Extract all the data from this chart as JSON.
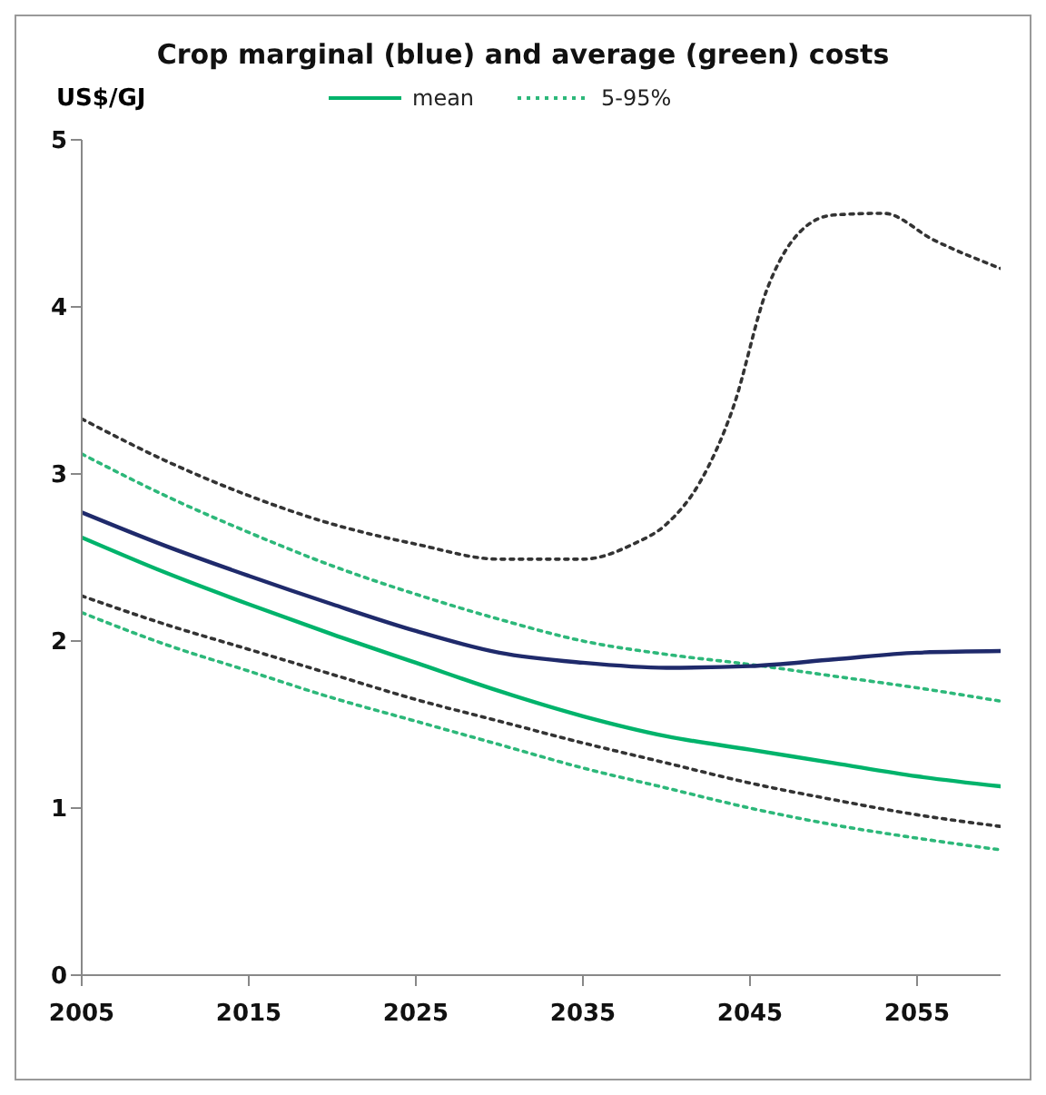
{
  "chart_data": {
    "type": "line",
    "title": "Crop marginal (blue) and average (green) costs",
    "ylabel": "US$/GJ",
    "x": [
      2005,
      2010,
      2015,
      2020,
      2025,
      2030,
      2035,
      2040,
      2045,
      2050,
      2055,
      2060
    ],
    "series": [
      {
        "color": "#333333",
        "line_style": "dotted",
        "x": [
          2005,
          2010,
          2015,
          2020,
          2025,
          2030,
          2035,
          2038,
          2040,
          2042,
          2044,
          2046,
          2048,
          2050,
          2053,
          2056,
          2060
        ],
        "values": [
          3.33,
          3.08,
          2.87,
          2.7,
          2.58,
          2.49,
          2.49,
          2.58,
          2.7,
          2.95,
          3.4,
          4.1,
          4.45,
          4.55,
          4.56,
          4.4,
          4.23
        ]
      },
      {
        "color": "#333333",
        "line_style": "dotted",
        "values": [
          2.27,
          2.1,
          1.95,
          1.8,
          1.65,
          1.52,
          1.39,
          1.27,
          1.15,
          1.05,
          0.96,
          0.89
        ]
      },
      {
        "name": "5-95%",
        "color": "#2db87a",
        "line_style": "dotted",
        "values": [
          3.12,
          2.87,
          2.65,
          2.45,
          2.28,
          2.13,
          2.0,
          1.92,
          1.86,
          1.79,
          1.72,
          1.64
        ]
      },
      {
        "color": "#2db87a",
        "line_style": "dotted",
        "values": [
          2.17,
          1.98,
          1.82,
          1.66,
          1.52,
          1.38,
          1.24,
          1.12,
          1.0,
          0.9,
          0.82,
          0.75
        ]
      },
      {
        "color": "#1f2a6b",
        "line_style": "solid",
        "values": [
          2.77,
          2.57,
          2.39,
          2.22,
          2.06,
          1.93,
          1.87,
          1.84,
          1.85,
          1.89,
          1.93,
          1.94
        ]
      },
      {
        "name": "mean",
        "color": "#00b36b",
        "line_style": "solid",
        "values": [
          2.62,
          2.41,
          2.22,
          2.04,
          1.87,
          1.7,
          1.55,
          1.43,
          1.35,
          1.27,
          1.19,
          1.13
        ]
      }
    ],
    "xlim": [
      2005,
      2060
    ],
    "xticks": [
      2005,
      2015,
      2025,
      2035,
      2045,
      2055
    ],
    "ylim": [
      0,
      5
    ],
    "yticks": [
      0,
      1,
      2,
      3,
      4,
      5
    ],
    "grid": false,
    "legend": "top",
    "marker": "none"
  }
}
